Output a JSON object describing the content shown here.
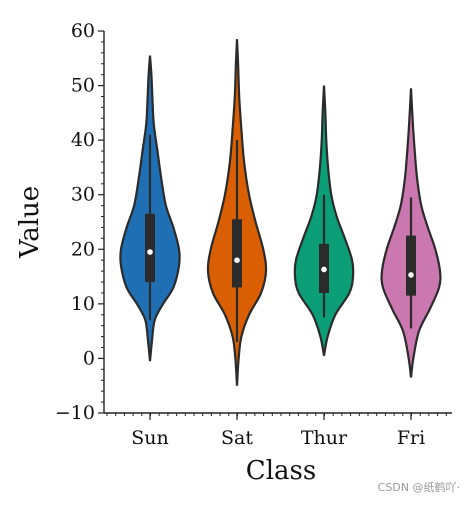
{
  "chart_data": {
    "type": "violin",
    "xlabel": "Class",
    "ylabel": "Value",
    "ylim": [
      -10,
      60
    ],
    "yticks": [
      -10,
      0,
      10,
      20,
      30,
      40,
      50,
      60
    ],
    "categories": [
      "Sun",
      "Sat",
      "Thur",
      "Fri"
    ],
    "grid": false,
    "legend": "none",
    "series": [
      {
        "category": "Sun",
        "color": "#1f6fb5",
        "kde_min": -0.5,
        "kde_max": 55.5,
        "whisker_low": 7,
        "whisker_high": 41,
        "q1": 14,
        "median": 19.5,
        "q3": 26.5,
        "density": [
          [
            -0.5,
            0.0
          ],
          [
            3,
            0.04
          ],
          [
            7,
            0.1
          ],
          [
            10,
            0.28
          ],
          [
            13,
            0.5
          ],
          [
            17,
            0.62
          ],
          [
            20,
            0.62
          ],
          [
            24,
            0.5
          ],
          [
            28,
            0.34
          ],
          [
            33,
            0.24
          ],
          [
            38,
            0.16
          ],
          [
            43,
            0.08
          ],
          [
            48,
            0.05
          ],
          [
            52,
            0.03
          ],
          [
            55.5,
            0.0
          ]
        ]
      },
      {
        "category": "Sat",
        "color": "#d95f02",
        "kde_min": -5,
        "kde_max": 58.5,
        "whisker_low": 3,
        "whisker_high": 40,
        "q1": 13,
        "median": 18,
        "q3": 25.5,
        "density": [
          [
            -5,
            0.0
          ],
          [
            0,
            0.03
          ],
          [
            4,
            0.08
          ],
          [
            8,
            0.22
          ],
          [
            12,
            0.44
          ],
          [
            16,
            0.53
          ],
          [
            20,
            0.48
          ],
          [
            25,
            0.34
          ],
          [
            30,
            0.22
          ],
          [
            36,
            0.13
          ],
          [
            42,
            0.08
          ],
          [
            48,
            0.04
          ],
          [
            54,
            0.02
          ],
          [
            58.5,
            0.0
          ]
        ]
      },
      {
        "category": "Thur",
        "color": "#0b9e77",
        "kde_min": 0.5,
        "kde_max": 50,
        "whisker_low": 7.5,
        "whisker_high": 30,
        "q1": 12,
        "median": 16.3,
        "q3": 21,
        "density": [
          [
            0.5,
            0.0
          ],
          [
            4,
            0.08
          ],
          [
            8,
            0.25
          ],
          [
            12,
            0.56
          ],
          [
            15,
            0.64
          ],
          [
            18,
            0.62
          ],
          [
            22,
            0.46
          ],
          [
            26,
            0.28
          ],
          [
            30,
            0.16
          ],
          [
            35,
            0.09
          ],
          [
            40,
            0.05
          ],
          [
            45,
            0.03
          ],
          [
            50,
            0.0
          ]
        ]
      },
      {
        "category": "Fri",
        "color": "#cc78b0",
        "kde_min": -3.5,
        "kde_max": 49.5,
        "whisker_low": 5.5,
        "whisker_high": 29.5,
        "q1": 11.5,
        "median": 15.3,
        "q3": 22.5,
        "density": [
          [
            -3.5,
            0.0
          ],
          [
            0,
            0.05
          ],
          [
            5,
            0.17
          ],
          [
            9,
            0.4
          ],
          [
            13,
            0.6
          ],
          [
            16,
            0.62
          ],
          [
            20,
            0.52
          ],
          [
            24,
            0.36
          ],
          [
            28,
            0.22
          ],
          [
            33,
            0.13
          ],
          [
            38,
            0.08
          ],
          [
            43,
            0.04
          ],
          [
            49.5,
            0.0
          ]
        ]
      }
    ]
  },
  "watermark": "CSDN @纸鹤吖·"
}
